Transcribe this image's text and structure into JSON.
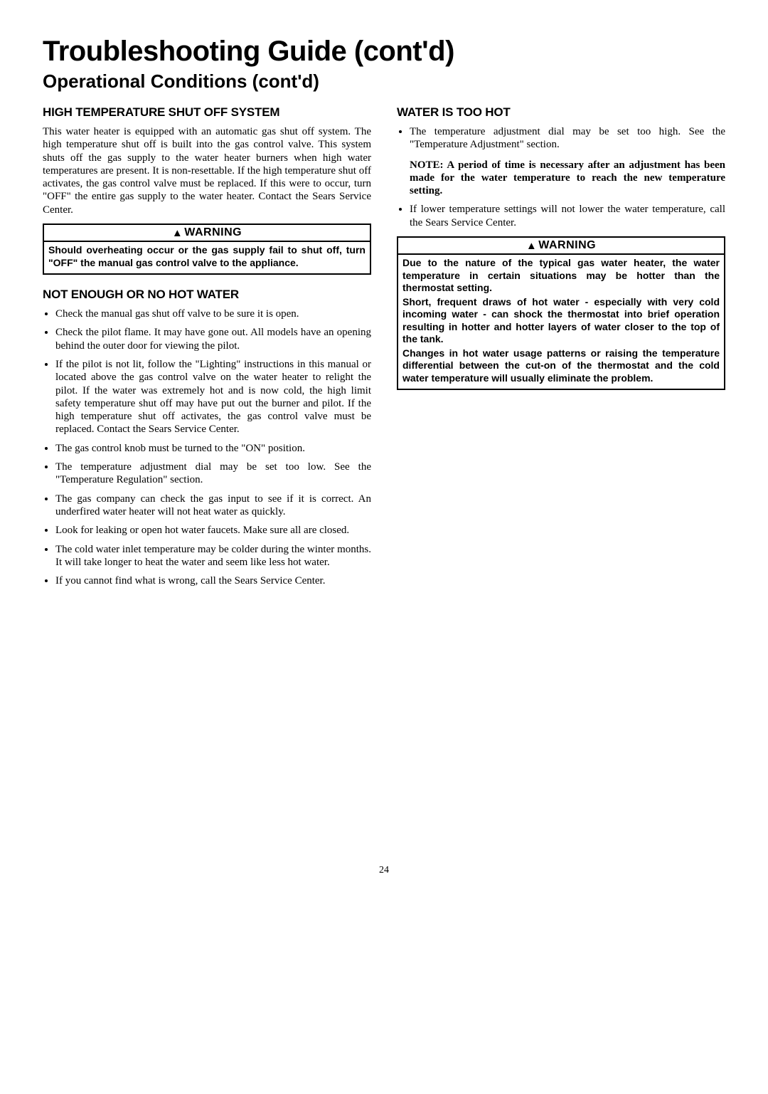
{
  "title": "Troubleshooting Guide (cont'd)",
  "subtitle": "Operational Conditions (cont'd)",
  "page_number": "24",
  "left": {
    "h1": "HIGH TEMPERATURE SHUT OFF SYSTEM",
    "p1": "This water heater is equipped with an automatic gas shut off system. The high temperature shut off is built into the gas control valve. This system shuts off the gas supply to the water heater burners when high water temperatures are present. It is non-resettable. If the high temperature shut off activates, the gas control valve must be replaced. If this were to occur, turn \"OFF\" the entire gas supply to the water heater. Contact the Sears Service Center.",
    "warn1_header": "WARNING",
    "warn1_body": "Should overheating occur or the gas supply fail to shut off, turn \"OFF\" the manual gas control valve to the appliance.",
    "h2": "NOT ENOUGH OR NO HOT WATER",
    "list": [
      "Check the manual gas shut off valve to be sure it is open.",
      "Check the pilot flame. It may have gone out. All models have an opening behind the outer door for viewing the pilot.",
      "If the pilot is not lit, follow the \"Lighting\" instructions in this manual or located above the gas control valve on the water heater to relight the pilot. If the water was extremely hot and is now cold, the high limit safety temperature shut off may have put out the burner and pilot. If the high temperature shut off activates, the gas control valve must be replaced. Contact the Sears Service Center.",
      "The gas control knob must be turned to the \"ON\" position.",
      "The temperature adjustment dial may be set too low. See the \"Temperature Regulation\" section.",
      "The gas company can check the gas input to see if it is correct. An underfired water heater will not heat water as quickly.",
      "Look for leaking or open hot water faucets. Make sure all are closed.",
      "The cold water inlet temperature may be colder during the winter months. It will take longer to heat the water and seem like less hot water.",
      "If you cannot find what is wrong, call the Sears Service Center."
    ]
  },
  "right": {
    "h1": "WATER IS TOO HOT",
    "b1": "The temperature adjustment dial may be set too high. See the \"Temperature Adjustment\" section.",
    "note": "NOTE: A period of time is necessary after an adjustment has been made for the water temperature to reach the new temperature setting.",
    "b2": "If lower temperature settings will not lower the water temperature, call the Sears Service Center.",
    "warn2_header": "WARNING",
    "warn2_p1": "Due to the nature of the typical gas water heater, the water temperature in certain situations may be hotter than the thermostat setting.",
    "warn2_p2": "Short, frequent draws of hot water - especially with very cold incoming water - can shock the thermostat into brief operation resulting in hotter and hotter layers of water closer to the top of the tank.",
    "warn2_p3": "Changes in hot water usage patterns or raising the temperature differential between the cut-on of the thermostat and the cold water temperature will usually eliminate the problem."
  }
}
